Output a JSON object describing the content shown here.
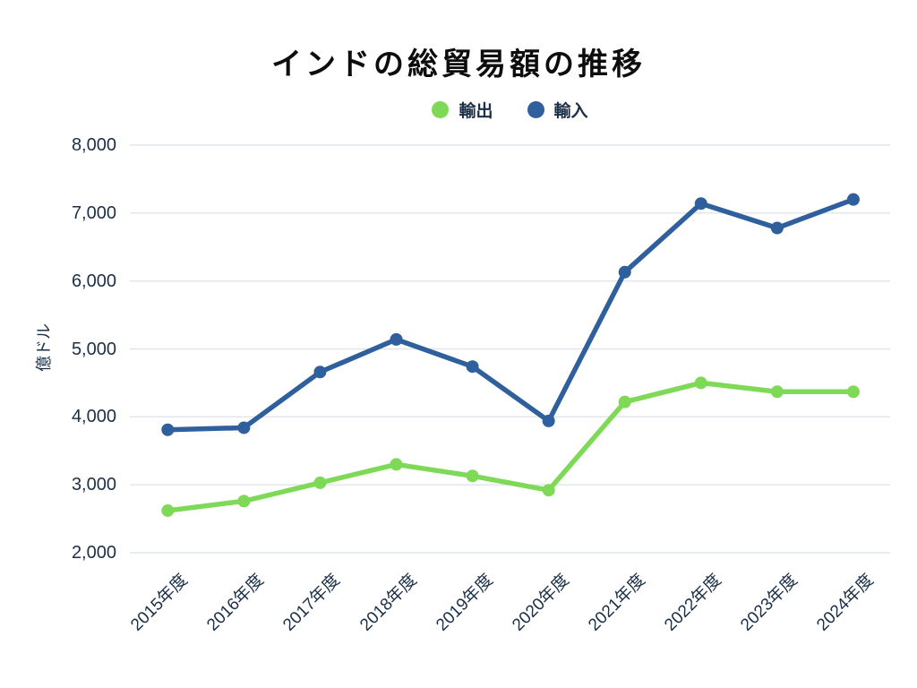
{
  "chart_data": {
    "type": "line",
    "title": "インドの総貿易額の推移",
    "categories": [
      "2015年度",
      "2016年度",
      "2017年度",
      "2018年度",
      "2019年度",
      "2020年度",
      "2021年度",
      "2022年度",
      "2023年度",
      "2024年度"
    ],
    "series": [
      {
        "id": "exports",
        "name": "輸出",
        "color": "#7ED957",
        "values": [
          2620,
          2760,
          3030,
          3300,
          3130,
          2920,
          4220,
          4500,
          4370,
          4370
        ]
      },
      {
        "id": "imports",
        "name": "輸入",
        "color": "#2F5F9C",
        "values": [
          3810,
          3840,
          4660,
          5140,
          4740,
          3940,
          6130,
          7140,
          6780,
          7200
        ]
      }
    ],
    "xlabel": "",
    "ylabel": "億ドル",
    "ylim": [
      2000,
      8000
    ],
    "ytick_step": 1000,
    "ytick_labels": [
      "2,000",
      "3,000",
      "4,000",
      "5,000",
      "6,000",
      "7,000",
      "8,000"
    ],
    "grid": true,
    "legend_position": "top"
  },
  "colors": {
    "grid": "#E1E5E9",
    "axis_text": "#1B2F47",
    "title_text": "#0d0d0d",
    "background": "#ffffff"
  }
}
